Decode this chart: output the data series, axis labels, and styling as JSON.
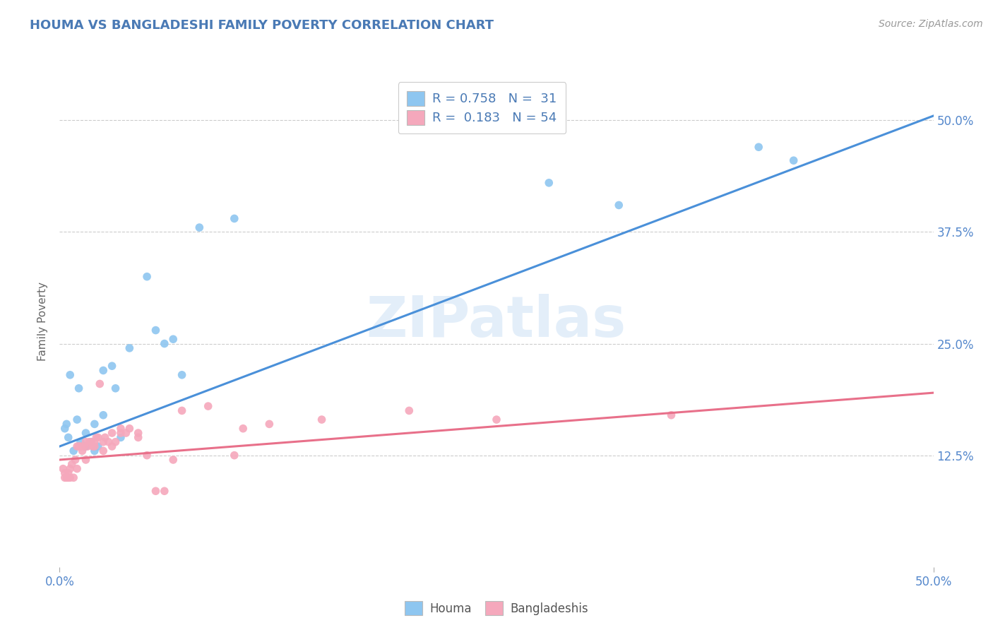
{
  "title": "HOUMA VS BANGLADESHI FAMILY POVERTY CORRELATION CHART",
  "source_text": "Source: ZipAtlas.com",
  "ylabel": "Family Poverty",
  "ytick_values": [
    12.5,
    25.0,
    37.5,
    50.0
  ],
  "xlim": [
    0,
    50
  ],
  "ylim": [
    0,
    55
  ],
  "houma_color": "#8ec6f0",
  "bangladeshi_color": "#f5a8bc",
  "houma_line_color": "#4a90d9",
  "bangladeshi_line_color": "#e8708a",
  "watermark": "ZIPatlas",
  "houma_line_x0": 0,
  "houma_line_y0": 13.5,
  "houma_line_x1": 50,
  "houma_line_y1": 50.5,
  "bang_line_x0": 0,
  "bang_line_y0": 12.0,
  "bang_line_x1": 50,
  "bang_line_y1": 19.5,
  "houma_points": [
    [
      0.3,
      15.5
    ],
    [
      0.4,
      16.0
    ],
    [
      0.5,
      14.5
    ],
    [
      0.6,
      21.5
    ],
    [
      0.8,
      13.0
    ],
    [
      1.0,
      16.5
    ],
    [
      1.1,
      20.0
    ],
    [
      1.2,
      14.0
    ],
    [
      1.5,
      13.5
    ],
    [
      1.5,
      15.0
    ],
    [
      1.8,
      14.0
    ],
    [
      2.0,
      13.0
    ],
    [
      2.0,
      16.0
    ],
    [
      2.2,
      13.5
    ],
    [
      2.5,
      17.0
    ],
    [
      2.5,
      22.0
    ],
    [
      3.0,
      22.5
    ],
    [
      3.2,
      20.0
    ],
    [
      3.5,
      14.5
    ],
    [
      4.0,
      24.5
    ],
    [
      5.0,
      32.5
    ],
    [
      5.5,
      26.5
    ],
    [
      6.0,
      25.0
    ],
    [
      6.5,
      25.5
    ],
    [
      7.0,
      21.5
    ],
    [
      8.0,
      38.0
    ],
    [
      10.0,
      39.0
    ],
    [
      28.0,
      43.0
    ],
    [
      32.0,
      40.5
    ],
    [
      40.0,
      47.0
    ],
    [
      42.0,
      45.5
    ]
  ],
  "bangladeshi_points": [
    [
      0.2,
      11.0
    ],
    [
      0.3,
      10.5
    ],
    [
      0.3,
      10.0
    ],
    [
      0.4,
      10.0
    ],
    [
      0.5,
      10.5
    ],
    [
      0.5,
      10.0
    ],
    [
      0.6,
      10.0
    ],
    [
      0.6,
      11.0
    ],
    [
      0.7,
      11.5
    ],
    [
      0.8,
      10.0
    ],
    [
      0.9,
      12.0
    ],
    [
      1.0,
      11.0
    ],
    [
      1.0,
      13.5
    ],
    [
      1.1,
      13.5
    ],
    [
      1.2,
      13.5
    ],
    [
      1.3,
      13.0
    ],
    [
      1.4,
      13.5
    ],
    [
      1.5,
      12.0
    ],
    [
      1.5,
      14.0
    ],
    [
      1.6,
      13.5
    ],
    [
      1.7,
      14.0
    ],
    [
      1.8,
      14.0
    ],
    [
      1.9,
      13.5
    ],
    [
      2.0,
      13.5
    ],
    [
      2.0,
      14.0
    ],
    [
      2.1,
      14.5
    ],
    [
      2.2,
      14.5
    ],
    [
      2.3,
      20.5
    ],
    [
      2.5,
      13.0
    ],
    [
      2.5,
      14.0
    ],
    [
      2.6,
      14.5
    ],
    [
      2.8,
      14.0
    ],
    [
      3.0,
      13.5
    ],
    [
      3.0,
      15.0
    ],
    [
      3.2,
      14.0
    ],
    [
      3.5,
      15.0
    ],
    [
      3.5,
      15.5
    ],
    [
      3.8,
      15.0
    ],
    [
      4.0,
      15.5
    ],
    [
      4.5,
      15.0
    ],
    [
      4.5,
      14.5
    ],
    [
      5.0,
      12.5
    ],
    [
      5.5,
      8.5
    ],
    [
      6.0,
      8.5
    ],
    [
      6.5,
      12.0
    ],
    [
      7.0,
      17.5
    ],
    [
      8.5,
      18.0
    ],
    [
      10.0,
      12.5
    ],
    [
      10.5,
      15.5
    ],
    [
      12.0,
      16.0
    ],
    [
      15.0,
      16.5
    ],
    [
      20.0,
      17.5
    ],
    [
      25.0,
      16.5
    ],
    [
      35.0,
      17.0
    ]
  ]
}
